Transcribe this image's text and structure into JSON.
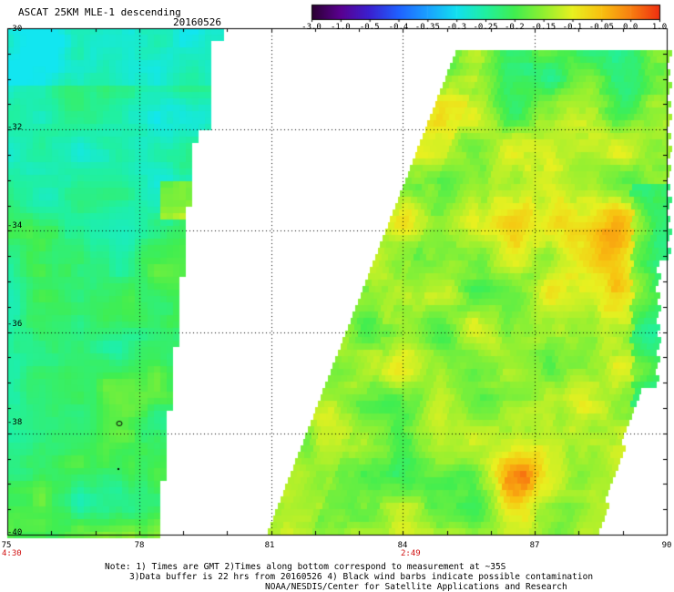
{
  "title": "ASCAT 25KM MLE-1 descending",
  "date": "20160526",
  "colorbar": {
    "labels": [
      "-3.0",
      "-1.0",
      "-0.5",
      "-0.4",
      "-0.35",
      "-0.3",
      "-0.25",
      "-0.2",
      "-0.15",
      "-0.1",
      "-0.05",
      "0.0",
      "1.0"
    ],
    "colors": [
      "#2a0030",
      "#5a0090",
      "#3a20d0",
      "#2060ff",
      "#1aa0ff",
      "#12e0f0",
      "#20f0a0",
      "#40ee50",
      "#90f030",
      "#e8f020",
      "#f8c010",
      "#f88010",
      "#f03010"
    ]
  },
  "map": {
    "lat_labels": [
      "-30",
      "-32",
      "-34",
      "-36",
      "-38",
      "-40"
    ],
    "lon_labels": [
      "75",
      "78",
      "81",
      "84",
      "87",
      "90"
    ],
    "pass_times": [
      {
        "label": "4:30",
        "lon": "75"
      },
      {
        "label": "2:49",
        "lon": "84"
      }
    ]
  },
  "notes": [
    "Note: 1) Times are GMT 2)Times along bottom correspond to measurement at ~35S",
    "3)Data buffer is 22 hrs from 20160526 4) Black wind barbs indicate possible contamination",
    "NOAA/NESDIS/Center for Satellite Applications and Research"
  ]
}
